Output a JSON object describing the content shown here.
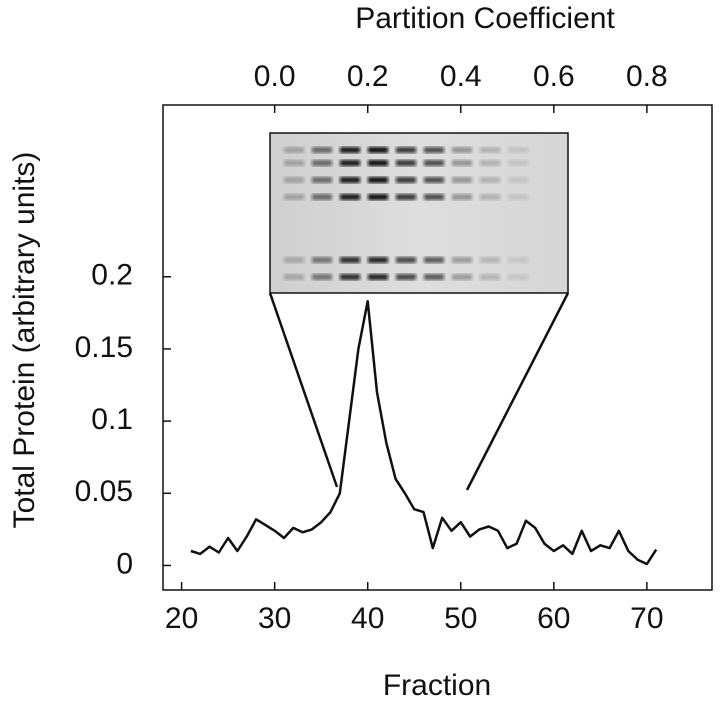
{
  "chart_data": {
    "type": "line",
    "xlabel": "Fraction",
    "ylabel": "Total Protein (arbitrary units)",
    "x2label": "Partition Coefficient",
    "x": [
      21,
      22,
      23,
      24,
      25,
      26,
      27,
      28,
      29,
      30,
      31,
      32,
      33,
      34,
      35,
      36,
      37,
      38,
      39,
      40,
      41,
      42,
      43,
      44,
      45,
      46,
      47,
      48,
      49,
      50,
      51,
      52,
      53,
      54,
      55,
      56,
      57,
      58,
      59,
      60,
      61,
      62,
      63,
      64,
      65,
      66,
      67,
      68,
      69,
      70,
      71
    ],
    "values": [
      0.01,
      0.008,
      0.013,
      0.009,
      0.019,
      0.01,
      0.02,
      0.032,
      0.028,
      0.024,
      0.019,
      0.026,
      0.023,
      0.025,
      0.03,
      0.037,
      0.05,
      0.1,
      0.15,
      0.183,
      0.12,
      0.085,
      0.06,
      0.05,
      0.039,
      0.037,
      0.012,
      0.033,
      0.024,
      0.03,
      0.02,
      0.025,
      0.027,
      0.024,
      0.012,
      0.015,
      0.031,
      0.026,
      0.015,
      0.01,
      0.014,
      0.008,
      0.024,
      0.01,
      0.014,
      0.012,
      0.024,
      0.01,
      0.004,
      0.001,
      0.011
    ],
    "color": "#111111",
    "xlim": [
      18,
      77
    ],
    "xticks": [
      20,
      30,
      40,
      50,
      60,
      70
    ],
    "ylim": [
      -0.017,
      0.319
    ],
    "yticks": [
      0,
      0.05,
      0.1,
      0.15,
      0.2
    ],
    "x2lim": [
      -0.24,
      0.94
    ],
    "x2ticks": [
      {
        "value": 0,
        "label": "0.0"
      },
      0.2,
      0.4,
      0.6,
      0.8
    ]
  }
}
